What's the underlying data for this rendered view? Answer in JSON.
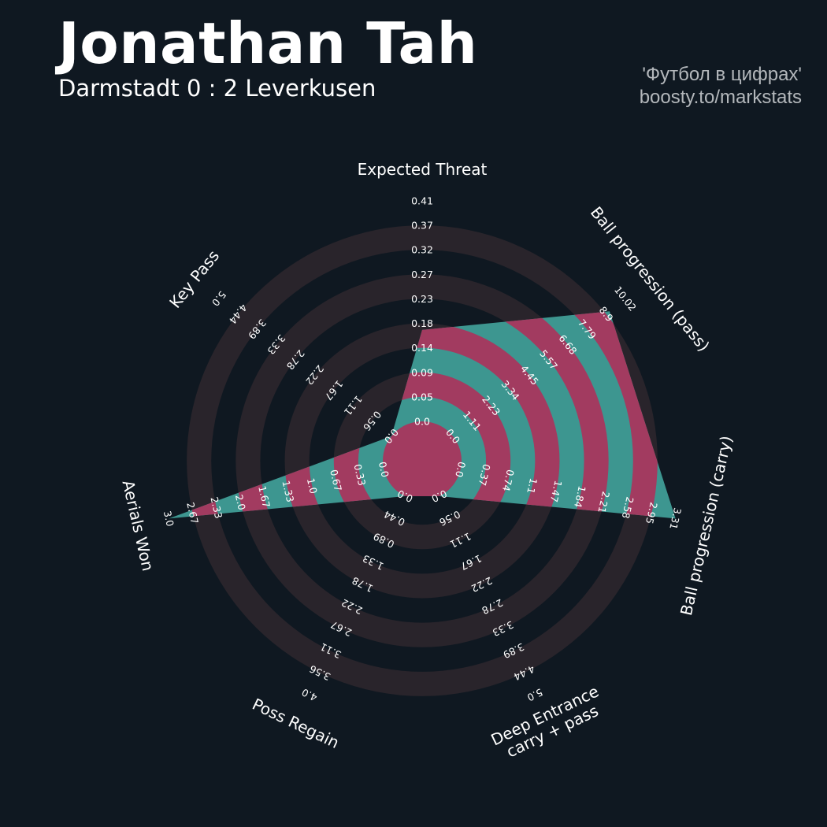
{
  "header": {
    "title": "Jonathan Tah",
    "subtitle": "Darmstadt 0 : 2 Leverkusen",
    "credit_line1": "'Футбол в цифрах'",
    "credit_line2": "boosty.to/markstats"
  },
  "colors": {
    "background": "#0f1821",
    "ring": "#29242b",
    "polygon_a": "#3d9690",
    "polygon_b": "#a23b60"
  },
  "chart_data": {
    "type": "radar",
    "title": "Jonathan Tah",
    "subtitle": "Darmstadt 0 : 2 Leverkusen",
    "params": [
      {
        "name": "Expected Threat",
        "lines": [
          "Expected Threat"
        ],
        "min": 0.0,
        "max": 0.41,
        "ticks": [
          "0.0",
          "0.05",
          "0.09",
          "0.14",
          "0.18",
          "0.23",
          "0.27",
          "0.32",
          "0.37",
          "0.41"
        ],
        "value": 0.17
      },
      {
        "name": "Ball progression (pass)",
        "lines": [
          "Ball progression (pass)"
        ],
        "min": 0.0,
        "max": 10.02,
        "ticks": [
          "0.0",
          "1.11",
          "2.23",
          "3.34",
          "4.45",
          "5.57",
          "6.68",
          "7.79",
          "8.9",
          "10.02"
        ],
        "value": 9.1
      },
      {
        "name": "Ball progression (carry)",
        "lines": [
          "Ball progression (carry)"
        ],
        "min": 0.0,
        "max": 3.31,
        "ticks": [
          "0.0",
          "0.37",
          "0.74",
          "1.1",
          "1.47",
          "1.84",
          "2.21",
          "2.58",
          "2.95",
          "3.31"
        ],
        "value": 3.31
      },
      {
        "name": "Deep Entrance carry + pass",
        "lines": [
          "Deep Entrance",
          "carry + pass"
        ],
        "min": 0.0,
        "max": 5.0,
        "ticks": [
          "0.0",
          "0.56",
          "1.11",
          "1.67",
          "2.22",
          "2.78",
          "3.33",
          "3.89",
          "4.44",
          "5.0"
        ],
        "value": 0.0
      },
      {
        "name": "Poss Regain",
        "lines": [
          "Poss Regain"
        ],
        "min": 0.0,
        "max": 4.0,
        "ticks": [
          "0.0",
          "0.44",
          "0.89",
          "1.33",
          "1.78",
          "2.22",
          "2.67",
          "3.11",
          "3.56",
          "4.0"
        ],
        "value": 0.0
      },
      {
        "name": "Aerials Won",
        "lines": [
          "Aerials Won"
        ],
        "min": 0.0,
        "max": 3.0,
        "ticks": [
          "0.0",
          "0.33",
          "0.67",
          "1.0",
          "1.33",
          "1.67",
          "2.0",
          "2.33",
          "2.67",
          "3.0"
        ],
        "value": 3.0
      },
      {
        "name": "Key Pass",
        "lines": [
          "Key Pass"
        ],
        "min": 0.0,
        "max": 5.0,
        "ticks": [
          "0.0",
          "0.56",
          "1.11",
          "1.67",
          "2.22",
          "2.78",
          "3.33",
          "3.89",
          "4.44",
          "5.0"
        ],
        "value": 0.0
      }
    ]
  }
}
